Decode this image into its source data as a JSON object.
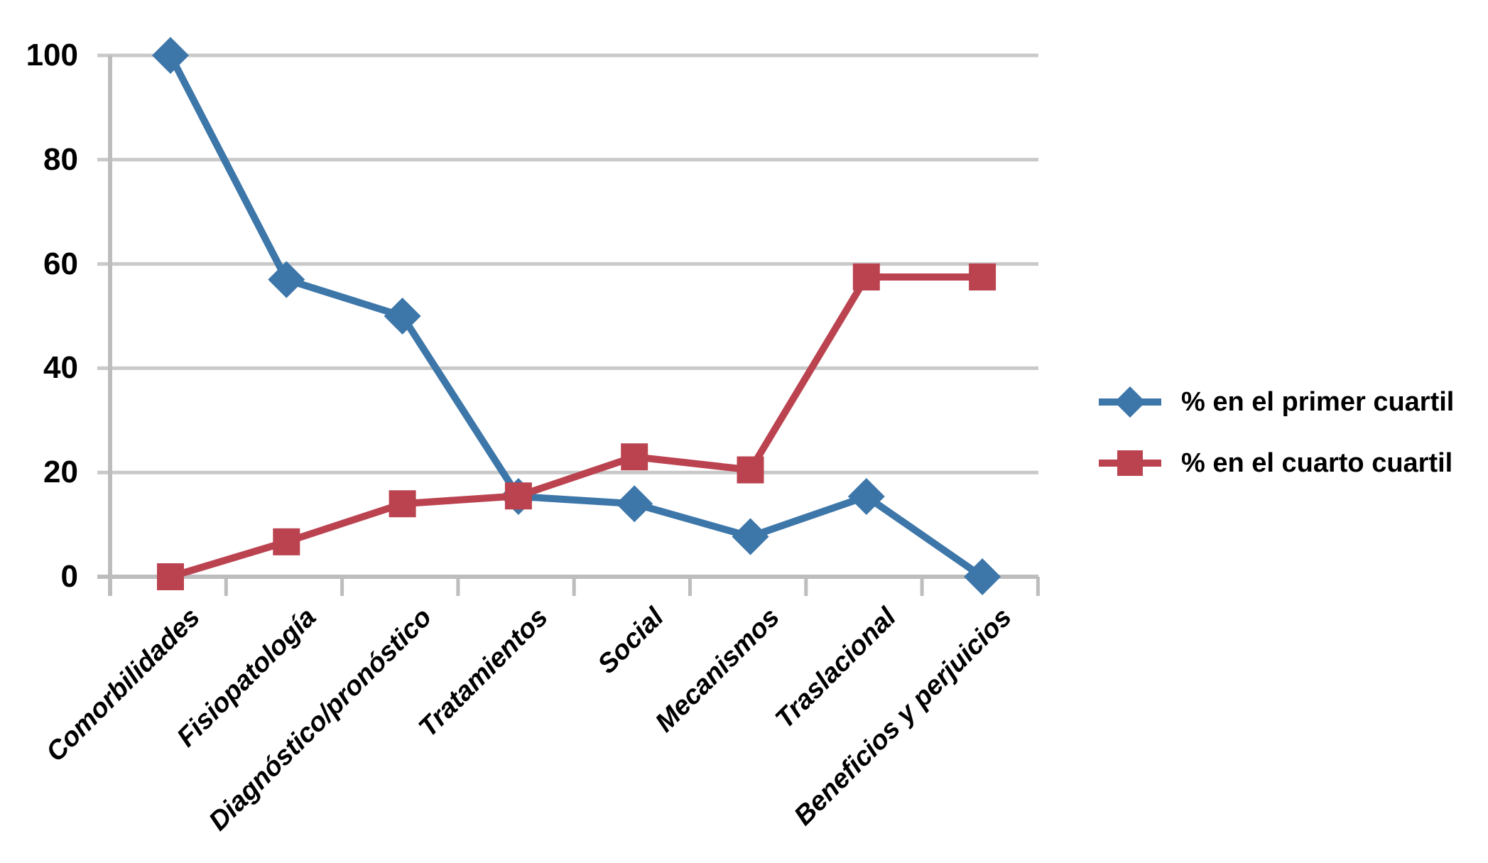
{
  "chart_data": {
    "type": "line",
    "title": "",
    "xlabel": "",
    "ylabel": "",
    "categories": [
      "Comorbilidades",
      "Fisiopatología",
      "Diagnóstico/pronóstico",
      "Tratamientos",
      "Social",
      "Mecanismos",
      "Traslacional",
      "Beneficios y perjuicios"
    ],
    "series": [
      {
        "name": "% en el primer cuartil",
        "marker": "diamond",
        "color": "#3D76A8",
        "values": [
          100,
          57,
          50,
          15.4,
          14,
          7.7,
          15.4,
          0
        ]
      },
      {
        "name": "% en el cuarto cuartil",
        "marker": "square",
        "color": "#BB4350",
        "values": [
          0,
          6.7,
          14,
          15.5,
          23,
          20.5,
          57.5,
          57.5
        ]
      }
    ],
    "ylim": [
      0,
      100
    ],
    "yticks": [
      0,
      20,
      40,
      60,
      80,
      100
    ],
    "grid": true,
    "grid_color": "#C9C9C9",
    "axis_color": "#BDBDBD",
    "legend_position": "right"
  }
}
